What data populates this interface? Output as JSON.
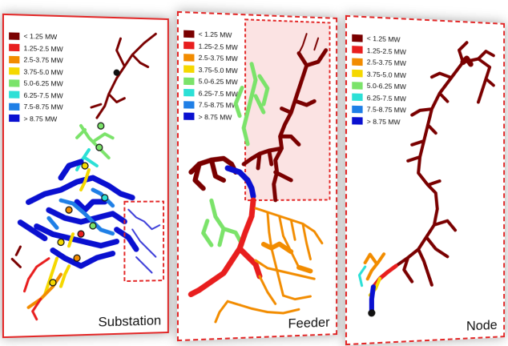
{
  "legend": [
    {
      "label": "< 1.25 MW",
      "color": "#7a0000"
    },
    {
      "label": "1.25-2.5 MW",
      "color": "#e81e1e"
    },
    {
      "label": "2.5-3.75 MW",
      "color": "#f28c00"
    },
    {
      "label": "3.75-5.0 MW",
      "color": "#f5d800"
    },
    {
      "label": "5.0-6.25 MW",
      "color": "#7be36a"
    },
    {
      "label": "6.25-7.5 MW",
      "color": "#2ce0d6"
    },
    {
      "label": "7.5-8.75 MW",
      "color": "#1f7fe6"
    },
    {
      "label": "> 8.75 MW",
      "color": "#0a10d0"
    }
  ],
  "panels": {
    "substation": {
      "label": "Substation"
    },
    "feeder": {
      "label": "Feeder"
    },
    "node": {
      "label": "Node"
    }
  },
  "colors": {
    "frame": "#e32727",
    "zoom_box_fill": "#fbe3e3"
  }
}
